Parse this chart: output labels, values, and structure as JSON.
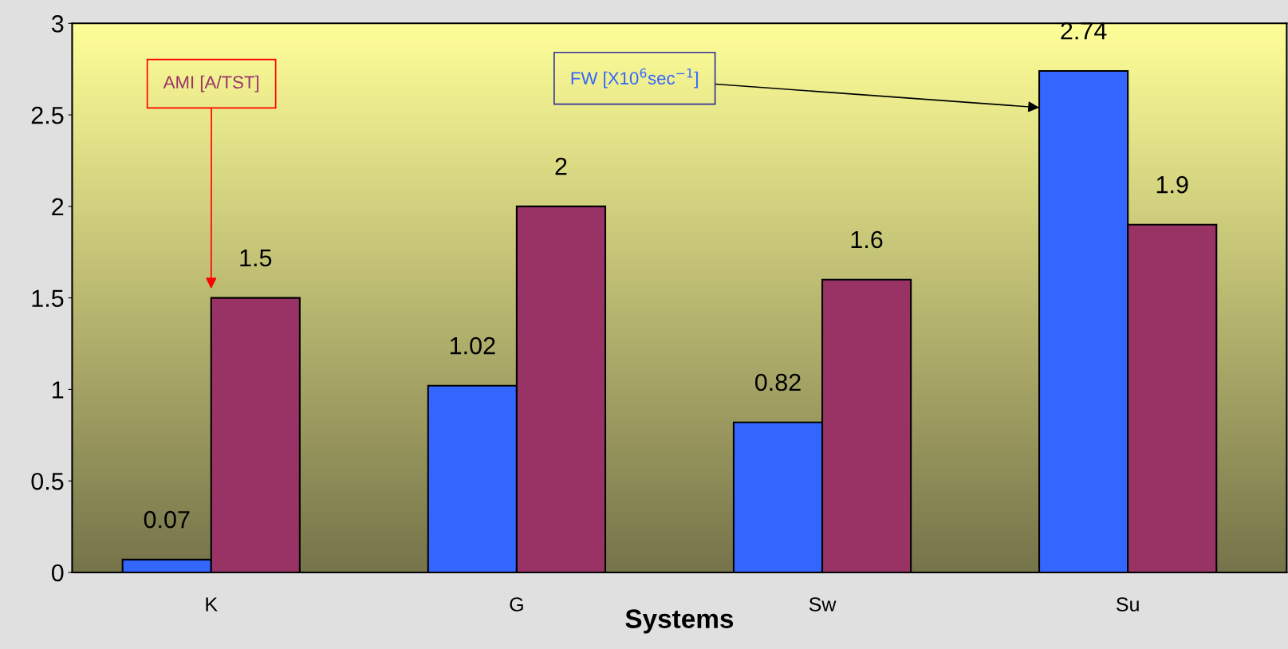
{
  "chart_data": {
    "type": "bar",
    "xlabel": "Systems",
    "categories": [
      "K",
      "G",
      "Sw",
      "Su"
    ],
    "series": [
      {
        "name": "FW [X10$^{6}$sec$^{−1}$]",
        "color": "#3366ff",
        "values": [
          0.07,
          1.02,
          0.82,
          2.74
        ]
      },
      {
        "name": "AMI [A/TST]",
        "color": "#993366",
        "values": [
          1.5,
          2,
          1.6,
          1.9
        ]
      }
    ],
    "ylim": [
      0,
      3
    ],
    "yticks": [
      0,
      0.5,
      1,
      1.5,
      2,
      2.5,
      3
    ],
    "data_labels": true,
    "grid": false
  }
}
